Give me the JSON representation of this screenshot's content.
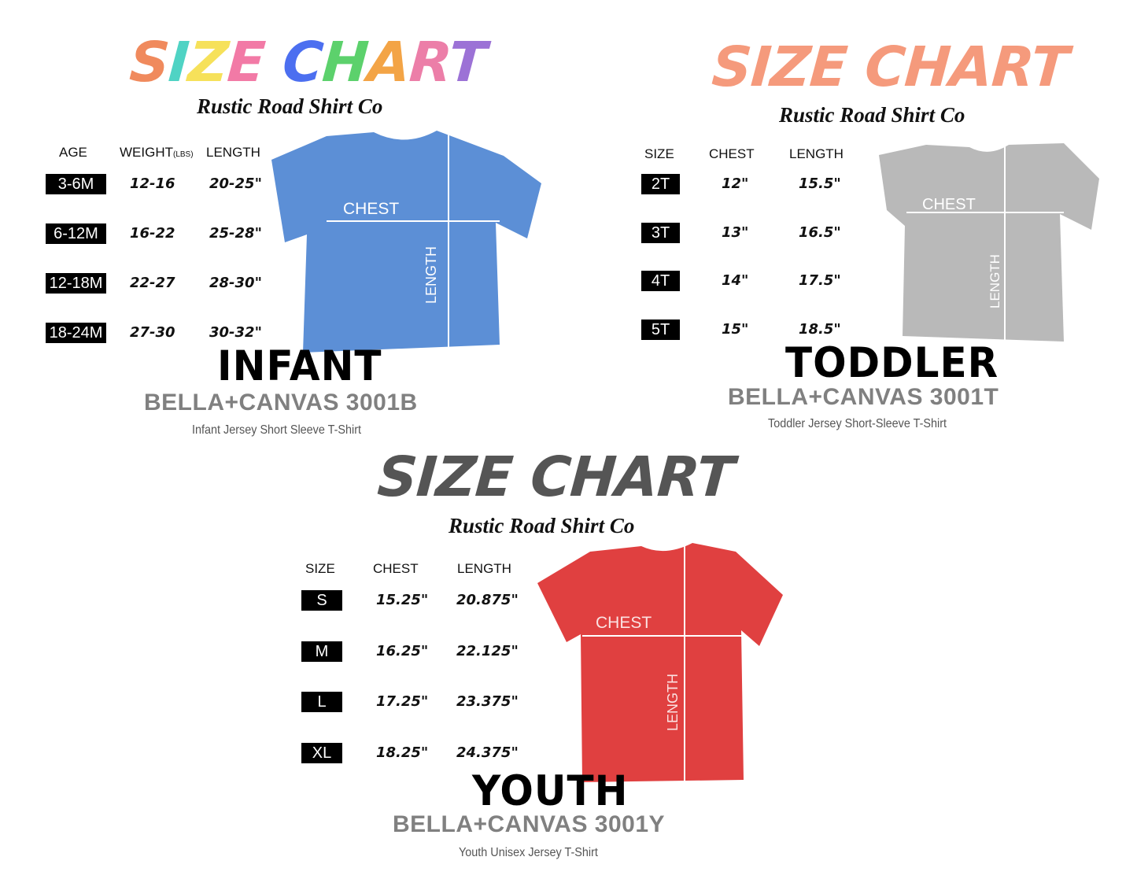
{
  "brand": "Rustic Road Shirt Co",
  "title": "SIZE CHART",
  "colors": {
    "title_rainbow": [
      "#f08a5d",
      "#4fd3c4",
      "#f6e15a",
      "#f27aa6",
      "#4c6ff0",
      "#5cd16c",
      "#f3a446",
      "#ec7ea8",
      "#9c72d6"
    ],
    "title_toddler": "#f59a7c",
    "title_youth": "#555555",
    "shirt_infant": "#5c8fd6",
    "shirt_toddler": "#b9b9b9",
    "shirt_youth": "#e04040"
  },
  "infant": {
    "headers": [
      "AGE",
      "WEIGHT",
      "(LBS)",
      "LENGTH"
    ],
    "rows": [
      {
        "size": "3-6M",
        "a": "12-16",
        "b": "20-25\""
      },
      {
        "size": "6-12M",
        "a": "16-22",
        "b": "25-28\""
      },
      {
        "size": "12-18M",
        "a": "22-27",
        "b": "28-30\""
      },
      {
        "size": "18-24M",
        "a": "27-30",
        "b": "30-32\""
      }
    ],
    "chest_label": "CHEST",
    "length_label": "LENGTH",
    "category": "INFANT",
    "model": "BELLA+CANVAS 3001B",
    "description": "Infant Jersey Short Sleeve T-Shirt"
  },
  "toddler": {
    "headers": [
      "SIZE",
      "CHEST",
      "LENGTH"
    ],
    "rows": [
      {
        "size": "2T",
        "a": "12\"",
        "b": "15.5\""
      },
      {
        "size": "3T",
        "a": "13\"",
        "b": "16.5\""
      },
      {
        "size": "4T",
        "a": "14\"",
        "b": "17.5\""
      },
      {
        "size": "5T",
        "a": "15\"",
        "b": "18.5\""
      }
    ],
    "chest_label": "CHEST",
    "length_label": "LENGTH",
    "category": "TODDLER",
    "model": "BELLA+CANVAS 3001T",
    "description": "Toddler Jersey Short-Sleeve T-Shirt"
  },
  "youth": {
    "headers": [
      "SIZE",
      "CHEST",
      "LENGTH"
    ],
    "rows": [
      {
        "size": "S",
        "a": "15.25\"",
        "b": "20.875\""
      },
      {
        "size": "M",
        "a": "16.25\"",
        "b": "22.125\""
      },
      {
        "size": "L",
        "a": "17.25\"",
        "b": "23.375\""
      },
      {
        "size": "XL",
        "a": "18.25\"",
        "b": "24.375\""
      }
    ],
    "chest_label": "CHEST",
    "length_label": "LENGTH",
    "category": "YOUTH",
    "model": "BELLA+CANVAS 3001Y",
    "description": "Youth Unisex Jersey T-Shirt"
  }
}
